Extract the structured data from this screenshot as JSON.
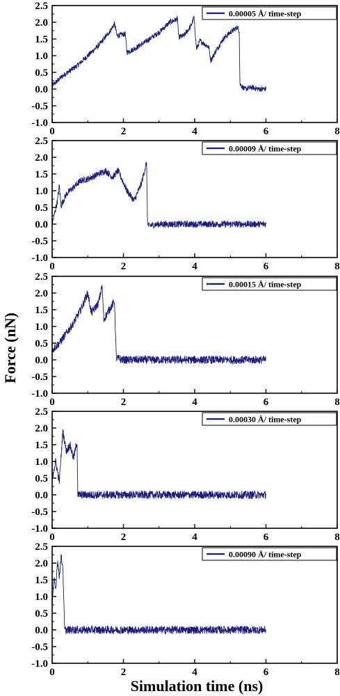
{
  "figure": {
    "xlabel": "Simulation time (ns)",
    "ylabel": "Force (nN)",
    "line_color": "#1a1a80"
  },
  "chart_data": [
    {
      "type": "line",
      "legend": "0.00005 Å/ time-step",
      "xlim": [
        0,
        8
      ],
      "ylim": [
        -1.0,
        2.5
      ],
      "xticks": [
        "0",
        "2",
        "4",
        "6",
        "8"
      ],
      "yticks": [
        "2.5",
        "2.0",
        "1.5",
        "1.0",
        "0.5",
        "0.0",
        "-0.5",
        "-1.0"
      ],
      "x": [
        0,
        0.3,
        0.7,
        1.0,
        1.3,
        1.6,
        1.75,
        1.82,
        2.05,
        2.1,
        2.3,
        2.6,
        3.0,
        3.3,
        3.52,
        3.55,
        3.7,
        3.9,
        3.98,
        4.05,
        4.15,
        4.4,
        4.45,
        4.6,
        4.8,
        5.0,
        5.2,
        5.25,
        5.27,
        5.4,
        5.6,
        5.8,
        6.0
      ],
      "y": [
        0.1,
        0.4,
        0.7,
        1.0,
        1.3,
        1.7,
        1.95,
        1.6,
        1.65,
        1.1,
        1.2,
        1.4,
        1.7,
        2.0,
        2.1,
        1.55,
        1.6,
        1.9,
        2.15,
        1.2,
        1.45,
        1.25,
        0.85,
        1.15,
        1.5,
        1.7,
        1.85,
        1.75,
        0.15,
        0.0,
        0.05,
        0.0,
        0.0
      ],
      "noise": 0.08
    },
    {
      "type": "line",
      "legend": "0.00009 Å/ time-step",
      "xlim": [
        0,
        8
      ],
      "ylim": [
        -1.0,
        2.5
      ],
      "xticks": [
        "0",
        "2",
        "4",
        "6",
        "8"
      ],
      "yticks": [
        "2.5",
        "2.0",
        "1.5",
        "1.0",
        "0.5",
        "0.0",
        "-0.5",
        "-1.0"
      ],
      "x": [
        0,
        0.15,
        0.2,
        0.25,
        0.4,
        0.6,
        0.8,
        1.0,
        1.3,
        1.5,
        1.7,
        1.85,
        2.1,
        2.3,
        2.5,
        2.65,
        2.68,
        3.0,
        3.5,
        4.0,
        4.5,
        5.0,
        5.5,
        6.0
      ],
      "y": [
        0.0,
        0.7,
        1.15,
        0.55,
        0.9,
        1.1,
        1.3,
        1.35,
        1.5,
        1.6,
        1.4,
        1.6,
        1.0,
        0.7,
        1.2,
        1.85,
        -0.05,
        0.0,
        0.0,
        0.0,
        0.0,
        0.0,
        0.0,
        0.0
      ],
      "noise": 0.1
    },
    {
      "type": "line",
      "legend": "0.00015 Å/ time-step",
      "xlim": [
        0,
        8
      ],
      "ylim": [
        -1.0,
        2.5
      ],
      "xticks": [
        "0",
        "2",
        "4",
        "6",
        "8"
      ],
      "yticks": [
        "2.5",
        "2.0",
        "1.5",
        "1.0",
        "0.5",
        "0.0",
        "-0.5",
        "-1.0"
      ],
      "x": [
        0,
        0.2,
        0.4,
        0.6,
        0.8,
        1.0,
        1.1,
        1.3,
        1.4,
        1.45,
        1.6,
        1.75,
        1.8,
        2.0,
        2.5,
        3.0,
        3.5,
        4.0,
        4.5,
        5.0,
        5.5,
        6.0
      ],
      "y": [
        0.3,
        0.5,
        0.8,
        1.1,
        1.5,
        2.0,
        1.4,
        1.7,
        2.2,
        1.2,
        1.5,
        1.75,
        0.05,
        0.0,
        0.0,
        0.0,
        0.0,
        0.0,
        0.0,
        0.0,
        0.0,
        0.0
      ],
      "noise": 0.12
    },
    {
      "type": "line",
      "legend": "0.00030 Å/ time-step",
      "xlim": [
        0,
        8
      ],
      "ylim": [
        -1.0,
        2.5
      ],
      "xticks": [
        "0",
        "2",
        "4",
        "6",
        "8"
      ],
      "yticks": [
        "2.5",
        "2.0",
        "1.5",
        "1.0",
        "0.5",
        "0.0",
        "-0.5",
        "-1.0"
      ],
      "x": [
        0,
        0.1,
        0.2,
        0.3,
        0.4,
        0.5,
        0.6,
        0.7,
        0.72,
        1.0,
        2.0,
        3.0,
        4.0,
        5.0,
        6.0
      ],
      "y": [
        0.5,
        1.0,
        0.4,
        1.9,
        1.3,
        1.5,
        1.1,
        1.6,
        0.0,
        0.0,
        0.0,
        0.0,
        0.0,
        0.0,
        0.0
      ],
      "noise": 0.12
    },
    {
      "type": "line",
      "legend": "0.00090 Å/ time-step",
      "xlim": [
        0,
        8
      ],
      "ylim": [
        -1.0,
        2.5
      ],
      "xticks": [
        "0",
        "2",
        "4",
        "6",
        "8"
      ],
      "yticks": [
        "2.5",
        "2.0",
        "1.5",
        "1.0",
        "0.5",
        "0.0",
        "-0.5",
        "-1.0"
      ],
      "x": [
        0,
        0.05,
        0.1,
        0.15,
        0.2,
        0.25,
        0.3,
        0.35,
        0.5,
        1.0,
        2.0,
        3.0,
        4.0,
        5.0,
        6.0
      ],
      "y": [
        0.8,
        1.5,
        1.2,
        2.1,
        1.6,
        2.2,
        1.9,
        0.0,
        0.0,
        0.0,
        0.0,
        0.0,
        0.0,
        0.0,
        0.0
      ],
      "noise": 0.12
    }
  ]
}
